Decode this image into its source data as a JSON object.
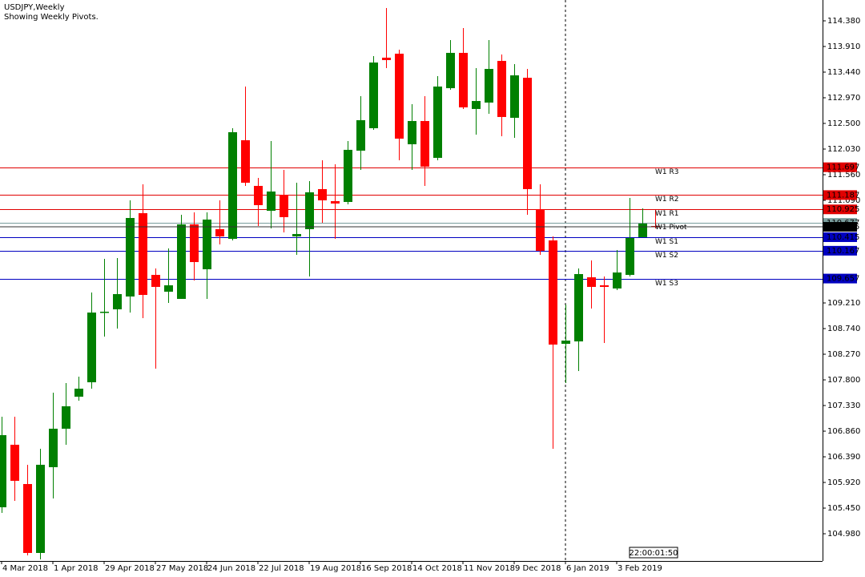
{
  "chart_data": {
    "type": "candlestick",
    "title": "USDJPY,Weekly",
    "subtitle": "Showing Weekly Pivots.",
    "categories": [
      "4 Mar 2018",
      null,
      null,
      null,
      "1 Apr 2018",
      null,
      null,
      null,
      "29 Apr 2018",
      null,
      null,
      null,
      "27 May 2018",
      null,
      null,
      null,
      "24 Jun 2018",
      null,
      null,
      null,
      "22 Jul 2018",
      null,
      null,
      null,
      "19 Aug 2018",
      null,
      null,
      null,
      "16 Sep 2018",
      null,
      null,
      null,
      "14 Oct 2018",
      null,
      null,
      null,
      "11 Nov 2018",
      null,
      null,
      null,
      "9 Dec 2018",
      null,
      null,
      null,
      "6 Jan 2019",
      null,
      null,
      null,
      "3 Feb 2019",
      null,
      null,
      null
    ],
    "open": [
      105.465,
      106.611,
      105.891,
      104.628,
      106.2,
      106.905,
      107.492,
      107.756,
      109.034,
      109.093,
      109.328,
      110.855,
      109.724,
      109.416,
      109.284,
      110.65,
      109.827,
      110.562,
      110.385,
      112.192,
      111.355,
      110.899,
      111.193,
      110.429,
      110.562,
      111.296,
      111.076,
      111.061,
      112.001,
      112.412,
      113.705,
      113.778,
      112.118,
      112.544,
      111.869,
      113.146,
      113.793,
      112.765,
      112.882,
      113.646,
      112.603,
      113.337,
      110.929,
      110.356,
      108.461,
      108.505,
      109.68,
      109.533,
      109.475,
      109.724,
      110.415,
      110.62
    ],
    "high": [
      107.125,
      107.125,
      106.244,
      106.537,
      107.565,
      107.742,
      107.859,
      109.401,
      110.018,
      110.033,
      111.09,
      111.384,
      109.842,
      110.209,
      110.826,
      110.87,
      110.87,
      111.09,
      112.412,
      113.176,
      111.502,
      112.177,
      111.648,
      111.413,
      111.443,
      111.825,
      111.751,
      112.177,
      113.0,
      113.734,
      114.615,
      113.851,
      112.853,
      113.0,
      113.367,
      114.028,
      114.248,
      113.514,
      114.028,
      113.763,
      113.587,
      113.499,
      111.384,
      110.429,
      109.181,
      109.842,
      109.989,
      109.695,
      110.18,
      111.134,
      110.943,
      110.914
    ],
    "low": [
      105.362,
      105.583,
      104.584,
      104.511,
      105.627,
      106.611,
      107.419,
      107.639,
      108.594,
      108.74,
      109.034,
      108.931,
      108.006,
      109.21,
      109.284,
      109.622,
      109.284,
      110.282,
      110.356,
      111.355,
      110.62,
      110.576,
      110.503,
      110.092,
      109.695,
      110.679,
      110.385,
      111.017,
      111.648,
      112.383,
      113.514,
      111.825,
      111.648,
      111.355,
      111.825,
      113.117,
      112.765,
      112.295,
      112.676,
      112.265,
      112.236,
      110.826,
      110.092,
      106.537,
      107.742,
      107.962,
      109.108,
      108.476,
      109.445,
      109.695,
      110.415,
      110.576
    ],
    "close": [
      106.787,
      105.95,
      104.628,
      106.244,
      106.905,
      107.316,
      107.639,
      109.034,
      109.049,
      109.372,
      110.767,
      109.357,
      109.504,
      109.533,
      110.65,
      109.959,
      110.738,
      110.429,
      112.339,
      111.413,
      111.002,
      111.252,
      110.782,
      110.473,
      111.237,
      111.09,
      111.032,
      112.016,
      112.559,
      113.616,
      113.661,
      112.221,
      112.544,
      111.707,
      113.176,
      113.793,
      112.794,
      112.911,
      113.499,
      112.618,
      113.381,
      111.296,
      110.165,
      108.447,
      108.52,
      109.739,
      109.504,
      109.504,
      109.768,
      110.4,
      110.664,
      110.605
    ],
    "up_color": "#008000",
    "down_color": "#ff0000",
    "ylim": [
      104.481,
      114.762
    ],
    "yticks": [
      {
        "value": 114.38,
        "label": "114.380"
      },
      {
        "value": 113.91,
        "label": "113.910"
      },
      {
        "value": 113.44,
        "label": "113.440"
      },
      {
        "value": 112.97,
        "label": "112.970"
      },
      {
        "value": 112.5,
        "label": "112.500"
      },
      {
        "value": 112.03,
        "label": "112.030"
      },
      {
        "value": 111.56,
        "label": "111.560"
      },
      {
        "value": 111.09,
        "label": "111.090"
      },
      {
        "value": 109.21,
        "label": "109.210"
      },
      {
        "value": 108.74,
        "label": "108.740"
      },
      {
        "value": 108.27,
        "label": "108.270"
      },
      {
        "value": 107.8,
        "label": "107.800"
      },
      {
        "value": 107.33,
        "label": "107.330"
      },
      {
        "value": 106.86,
        "label": "106.860"
      },
      {
        "value": 106.39,
        "label": "106.390"
      },
      {
        "value": 105.92,
        "label": "105.920"
      },
      {
        "value": 105.45,
        "label": "105.450"
      },
      {
        "value": 104.98,
        "label": "104.980"
      }
    ],
    "levels": [
      {
        "label": "W1 R3",
        "value": 111.697,
        "color": "#e00000"
      },
      {
        "label": "W1 R2",
        "value": 111.187,
        "color": "#e00000"
      },
      {
        "label": "W1 R1",
        "value": 110.925,
        "color": "#e00000"
      },
      {
        "label": "W1 Pivot",
        "value": 110.677,
        "color": "#7a9e9e"
      },
      {
        "label": "W1 S1",
        "value": 110.415,
        "color": "#0000c0"
      },
      {
        "label": "W1 S2",
        "value": 110.167,
        "color": "#0000c0"
      },
      {
        "label": "W1 S3",
        "value": 109.657,
        "color": "#0000c0"
      }
    ],
    "current_price": 110.605,
    "timer": "22:00:01:50"
  }
}
